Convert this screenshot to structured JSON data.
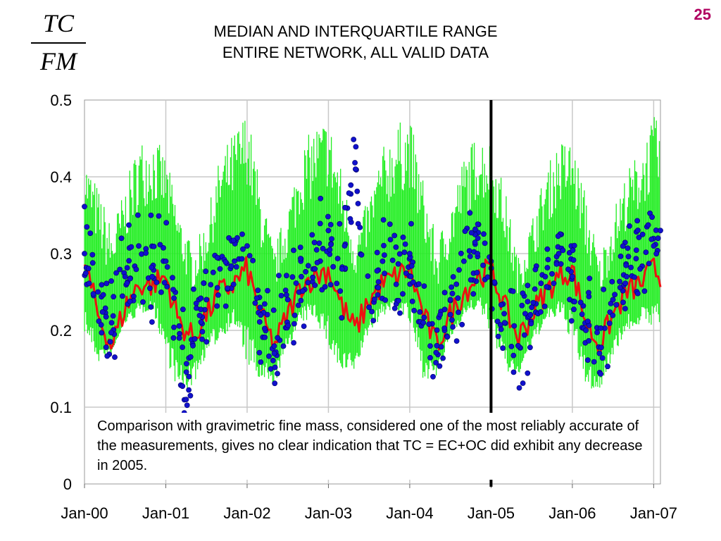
{
  "slide_number": "25",
  "fraction": {
    "numerator": "TC",
    "denominator": "FM"
  },
  "title_lines": [
    "MEDIAN AND INTERQUARTILE RANGE",
    "ENTIRE NETWORK, ALL VALID DATA"
  ],
  "annotation": "Comparison with gravimetric fine mass, considered one of the most reliably accurate of the measurements, gives no clear indication that TC = EC+OC did exhibit any decrease in 2005.",
  "colors": {
    "range": "#22ee22",
    "median": "#ee1111",
    "points": "#1111cc",
    "point_edge": "#000066",
    "gridline": "#c8c8c8",
    "divider": "#000000"
  },
  "chart_data": {
    "type": "line",
    "title": "MEDIAN AND INTERQUARTILE RANGE ENTIRE NETWORK, ALL VALID DATA",
    "ylabel": "TC/FM",
    "xlabel": "",
    "ylim": [
      0,
      0.5
    ],
    "yticks": [
      "0",
      "0.1",
      "0.2",
      "0.3",
      "0.4",
      "0.5"
    ],
    "x_ticks": [
      "Jan-00",
      "Jan-01",
      "Jan-02",
      "Jan-03",
      "Jan-04",
      "Jan-05",
      "Jan-06",
      "Jan-07"
    ],
    "xlim": [
      "Jan-00",
      "Feb-07"
    ],
    "grid": true,
    "vertical_marker": "Jan-05",
    "series": [
      {
        "type": "range",
        "x": [
          "Jan-00",
          "Mar-00",
          "May-00",
          "Jul-00",
          "Sep-00",
          "Nov-00",
          "Jan-01",
          "Mar-01",
          "May-01",
          "Jul-01",
          "Sep-01",
          "Nov-01",
          "Jan-02",
          "Mar-02",
          "May-02",
          "Jul-02",
          "Sep-02",
          "Nov-02",
          "Jan-03",
          "Mar-03",
          "May-03",
          "Jul-03",
          "Sep-03",
          "Nov-03",
          "Jan-04",
          "Mar-04",
          "May-04",
          "Jul-04",
          "Sep-04",
          "Nov-04",
          "Jan-05",
          "Mar-05",
          "May-05",
          "Jul-05",
          "Sep-05",
          "Nov-05",
          "Jan-06",
          "Mar-06",
          "May-06",
          "Jul-06",
          "Sep-06",
          "Nov-06",
          "Jan-07",
          "Feb-07"
        ],
        "low": [
          0.2,
          0.16,
          0.17,
          0.21,
          0.22,
          0.23,
          0.17,
          0.12,
          0.13,
          0.17,
          0.19,
          0.21,
          0.16,
          0.13,
          0.13,
          0.18,
          0.21,
          0.22,
          0.18,
          0.14,
          0.15,
          0.2,
          0.22,
          0.23,
          0.21,
          0.14,
          0.14,
          0.19,
          0.22,
          0.23,
          0.2,
          0.15,
          0.14,
          0.18,
          0.21,
          0.22,
          0.19,
          0.13,
          0.12,
          0.17,
          0.2,
          0.21,
          0.21,
          0.21
        ],
        "high": [
          0.42,
          0.38,
          0.33,
          0.38,
          0.44,
          0.45,
          0.42,
          0.35,
          0.3,
          0.34,
          0.42,
          0.45,
          0.48,
          0.38,
          0.3,
          0.36,
          0.43,
          0.46,
          0.47,
          0.4,
          0.32,
          0.37,
          0.43,
          0.46,
          0.47,
          0.39,
          0.31,
          0.36,
          0.42,
          0.45,
          0.44,
          0.38,
          0.29,
          0.34,
          0.4,
          0.44,
          0.44,
          0.37,
          0.29,
          0.35,
          0.4,
          0.43,
          0.47,
          0.46
        ]
      },
      {
        "type": "line",
        "x": [
          "Jan-00",
          "Mar-00",
          "May-00",
          "Jul-00",
          "Sep-00",
          "Nov-00",
          "Jan-01",
          "Mar-01",
          "May-01",
          "Jul-01",
          "Sep-01",
          "Nov-01",
          "Jan-02",
          "Mar-02",
          "May-02",
          "Jul-02",
          "Sep-02",
          "Nov-02",
          "Jan-03",
          "Mar-03",
          "May-03",
          "Jul-03",
          "Sep-03",
          "Nov-03",
          "Jan-04",
          "Mar-04",
          "May-04",
          "Jul-04",
          "Sep-04",
          "Nov-04",
          "Jan-05",
          "Mar-05",
          "May-05",
          "Jul-05",
          "Sep-05",
          "Nov-05",
          "Jan-06",
          "Mar-06",
          "May-06",
          "Jul-06",
          "Sep-06",
          "Nov-06",
          "Jan-07",
          "Feb-07"
        ],
        "values": [
          0.29,
          0.22,
          0.18,
          0.23,
          0.26,
          0.26,
          0.27,
          0.21,
          0.19,
          0.22,
          0.25,
          0.26,
          0.28,
          0.22,
          0.18,
          0.22,
          0.26,
          0.27,
          0.28,
          0.23,
          0.2,
          0.24,
          0.26,
          0.27,
          0.28,
          0.22,
          0.18,
          0.22,
          0.25,
          0.27,
          0.28,
          0.23,
          0.19,
          0.22,
          0.25,
          0.27,
          0.28,
          0.21,
          0.18,
          0.22,
          0.25,
          0.26,
          0.28,
          0.27
        ]
      },
      {
        "type": "scatter",
        "x": [
          "Jan-00",
          "Mar-00",
          "May-00",
          "Jul-00",
          "Sep-00",
          "Nov-00",
          "Jan-01",
          "Mar-01",
          "Apr-01",
          "May-01",
          "Jul-01",
          "Sep-01",
          "Nov-01",
          "Jan-02",
          "Mar-02",
          "May-02",
          "Jul-02",
          "Sep-02",
          "Nov-02",
          "Jan-03",
          "Mar-03",
          "May-03",
          "Jul-03",
          "Sep-03",
          "Nov-03",
          "Jan-04",
          "Mar-04",
          "May-04",
          "Jul-04",
          "Sep-04",
          "Nov-04",
          "Jan-05",
          "Mar-05",
          "May-05",
          "Jul-05",
          "Sep-05",
          "Nov-05",
          "Jan-06",
          "Mar-06",
          "May-06",
          "Jul-06",
          "Sep-06",
          "Nov-06",
          "Jan-07",
          "Feb-07"
        ],
        "values": [
          0.3,
          0.25,
          0.21,
          0.27,
          0.31,
          0.27,
          0.29,
          0.19,
          0.11,
          0.18,
          0.24,
          0.28,
          0.26,
          0.31,
          0.22,
          0.17,
          0.24,
          0.27,
          0.28,
          0.33,
          0.28,
          0.41,
          0.23,
          0.29,
          0.26,
          0.3,
          0.21,
          0.18,
          0.24,
          0.29,
          0.3,
          0.29,
          0.21,
          0.18,
          0.23,
          0.27,
          0.3,
          0.27,
          0.2,
          0.17,
          0.24,
          0.27,
          0.28,
          0.31,
          0.33
        ]
      }
    ]
  }
}
